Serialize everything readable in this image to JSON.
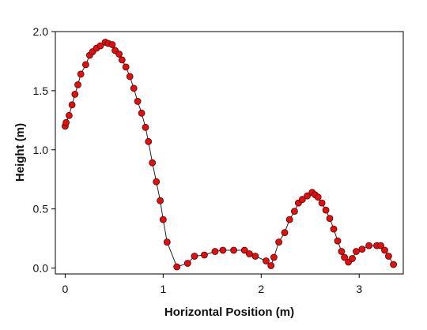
{
  "chart_data": {
    "type": "scatter",
    "title": "",
    "xlabel": "Horizontal Position (m)",
    "ylabel": "Height (m)",
    "xlim": [
      -0.1,
      3.45
    ],
    "ylim": [
      -0.05,
      2.0
    ],
    "x_ticks": [
      0,
      1,
      2,
      3
    ],
    "x_tick_labels": [
      "0",
      "1",
      "2",
      "3"
    ],
    "y_ticks": [
      0.0,
      0.5,
      1.0,
      1.5,
      2.0
    ],
    "y_tick_labels": [
      "0.0",
      "0.5",
      "1.0",
      "1.5",
      "2.0"
    ],
    "grid": false,
    "legend": "none",
    "connect_points": true,
    "colors": {
      "marker_fill": "#e01010",
      "marker_stroke": "#5a0000",
      "line": "#222222",
      "axis": "#000000"
    },
    "x": [
      0.0,
      0.01,
      0.04,
      0.07,
      0.1,
      0.13,
      0.16,
      0.21,
      0.25,
      0.28,
      0.32,
      0.36,
      0.41,
      0.44,
      0.48,
      0.51,
      0.55,
      0.58,
      0.62,
      0.66,
      0.7,
      0.74,
      0.78,
      0.82,
      0.85,
      0.89,
      0.93,
      0.97,
      1.0,
      1.04,
      1.14,
      1.25,
      1.32,
      1.42,
      1.53,
      1.61,
      1.72,
      1.83,
      1.88,
      1.94,
      2.05,
      2.1,
      2.13,
      2.18,
      2.24,
      2.29,
      2.34,
      2.38,
      2.42,
      2.47,
      2.52,
      2.55,
      2.58,
      2.62,
      2.66,
      2.7,
      2.74,
      2.78,
      2.82,
      2.85,
      2.89,
      2.93,
      2.97,
      3.03,
      3.1,
      3.18,
      3.22,
      3.26,
      3.3,
      3.35
    ],
    "y": [
      1.2,
      1.23,
      1.29,
      1.38,
      1.47,
      1.55,
      1.64,
      1.72,
      1.8,
      1.83,
      1.86,
      1.88,
      1.91,
      1.9,
      1.89,
      1.84,
      1.81,
      1.76,
      1.7,
      1.62,
      1.52,
      1.41,
      1.31,
      1.19,
      1.07,
      0.89,
      0.73,
      0.57,
      0.41,
      0.22,
      0.01,
      0.04,
      0.1,
      0.11,
      0.14,
      0.15,
      0.15,
      0.15,
      0.12,
      0.1,
      0.06,
      0.02,
      0.09,
      0.22,
      0.3,
      0.41,
      0.48,
      0.55,
      0.58,
      0.61,
      0.64,
      0.62,
      0.6,
      0.55,
      0.49,
      0.42,
      0.33,
      0.23,
      0.14,
      0.09,
      0.05,
      0.08,
      0.14,
      0.16,
      0.19,
      0.19,
      0.19,
      0.15,
      0.1,
      0.03
    ]
  }
}
